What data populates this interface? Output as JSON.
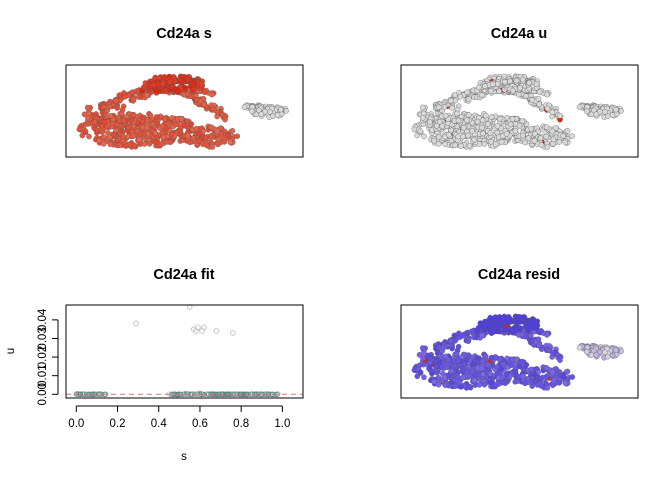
{
  "colors": {
    "background": "#ffffff",
    "frame": "#000000",
    "high_red": "#e8200a",
    "mid_red": "#e86a50",
    "grey_point": "#d9d9d9",
    "blue": "#3a2be8",
    "light_blue": "#a58cf0",
    "fit_line": "#d87070",
    "fit_points": "#5f7f7f"
  },
  "chart_data": [
    {
      "type": "scatter",
      "panel": "embedding",
      "title": "Cd24a s",
      "color_by": "spliced expression",
      "palette": [
        "#d9d9d9",
        "#e8200a"
      ],
      "axes_shown": false
    },
    {
      "type": "scatter",
      "panel": "embedding",
      "title": "Cd24a u",
      "color_by": "unspliced expression",
      "palette": [
        "#d9d9d9",
        "#e8200a"
      ],
      "axes_shown": false
    },
    {
      "type": "scatter",
      "panel": "fit",
      "title": "Cd24a fit",
      "xlabel": "s",
      "ylabel": "u",
      "xlim": [
        -0.05,
        1.1
      ],
      "ylim": [
        -0.002,
        0.048
      ],
      "xticks": [
        "0.0",
        "0.2",
        "0.4",
        "0.6",
        "0.8",
        "1.0"
      ],
      "yticks": [
        "0.00",
        "0.01",
        "0.02",
        "0.03",
        "0.04"
      ],
      "outlier_points": [
        {
          "x": 0.29,
          "y": 0.038
        },
        {
          "x": 0.55,
          "y": 0.047
        },
        {
          "x": 0.57,
          "y": 0.035
        },
        {
          "x": 0.58,
          "y": 0.034
        },
        {
          "x": 0.59,
          "y": 0.036
        },
        {
          "x": 0.61,
          "y": 0.034
        },
        {
          "x": 0.62,
          "y": 0.036
        },
        {
          "x": 0.68,
          "y": 0.034
        },
        {
          "x": 0.76,
          "y": 0.033
        },
        {
          "x": 0.53,
          "y": 0.0005
        },
        {
          "x": 0.6,
          "y": 0.0006
        }
      ],
      "baseline_clusters": [
        {
          "x_from": 0.0,
          "x_to": 0.15,
          "y": 0
        },
        {
          "x_from": 0.45,
          "x_to": 0.98,
          "y": 0
        }
      ],
      "fit_line": {
        "y": 0,
        "style": "dashed"
      }
    },
    {
      "type": "scatter",
      "panel": "embedding",
      "title": "Cd24a resid",
      "color_by": "residual",
      "palette": [
        "#3a2be8",
        "#d9d9d9",
        "#e8200a"
      ],
      "axes_shown": false
    }
  ]
}
